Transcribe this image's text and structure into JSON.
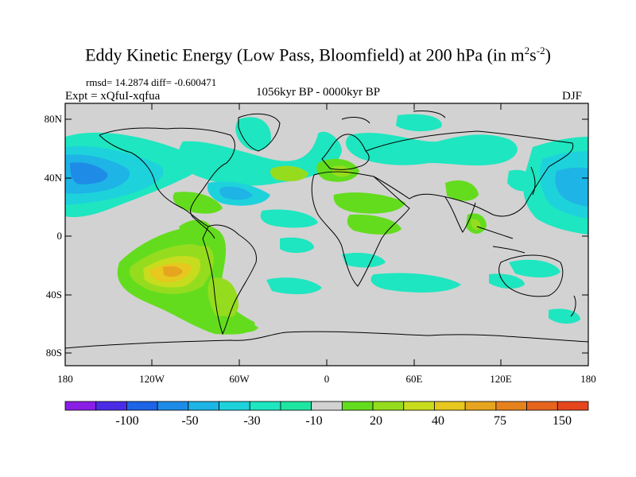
{
  "title": {
    "main": "Eddy Kinetic Energy (Low Pass, Bloomfield) at 200 hPa (in m",
    "sup1": "2",
    "mid": "s",
    "sup2": "-2",
    "end": ")"
  },
  "stats": "rmsd= 14.2874 diff= -0.600471",
  "experiment": "Expt = xQfuI-xqfua",
  "period": "1056kyr BP - 0000kyr BP",
  "season": "DJF",
  "y_ticks": [
    "80N",
    "40N",
    "0",
    "40S",
    "80S"
  ],
  "x_ticks": [
    "180",
    "120W",
    "60W",
    "0",
    "60E",
    "120E",
    "180"
  ],
  "colorbar": {
    "colors": [
      "#8a1ee6",
      "#4c2be6",
      "#1e64e6",
      "#1e8ce6",
      "#1eb4e6",
      "#1ed2dc",
      "#1ee6c0",
      "#1ee6a0",
      "#d2d2d2",
      "#64dc1e",
      "#96dc1e",
      "#c8dc1e",
      "#e6c81e",
      "#e6a51e",
      "#e6821e",
      "#e6641e",
      "#e6461e"
    ],
    "labels": [
      "-100",
      "-50",
      "-30",
      "-10",
      "20",
      "40",
      "75",
      "150"
    ]
  },
  "colors": {
    "land_default": "#d2d2d2",
    "coast": "#000000"
  }
}
